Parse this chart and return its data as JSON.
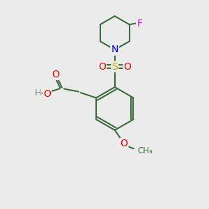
{
  "background_color": "#ebebeb",
  "bond_color": "#3a6b3a",
  "atom_colors": {
    "N": "#0000ee",
    "O": "#ee0000",
    "S": "#bbaa00",
    "F": "#cc00cc",
    "H": "#888888",
    "C": "#3a6b3a"
  },
  "figsize": [
    3.0,
    3.0
  ],
  "dpi": 100
}
